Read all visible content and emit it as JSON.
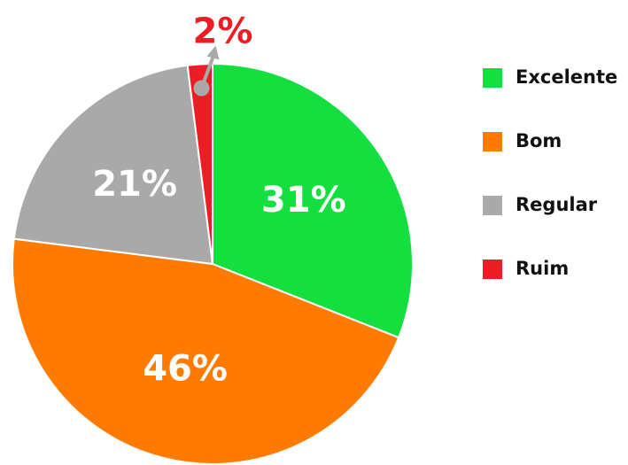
{
  "chart_data": {
    "type": "pie",
    "categories": [
      "Excelente",
      "Bom",
      "Regular",
      "Ruim"
    ],
    "values": [
      31,
      46,
      21,
      2
    ],
    "value_labels": [
      "31%",
      "46%",
      "21%",
      "2%"
    ],
    "colors": [
      "#13e03f",
      "#ff7b00",
      "#a9a9a9",
      "#ee1c25"
    ],
    "legend": "right"
  }
}
